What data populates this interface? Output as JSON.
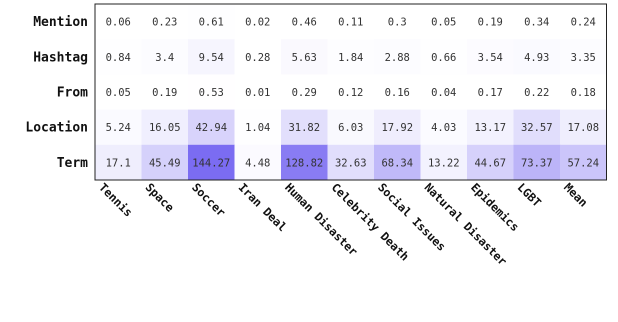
{
  "chart_data": {
    "type": "heatmap",
    "title": "",
    "xlabel": "",
    "ylabel": "",
    "rows": [
      "Mention",
      "Hashtag",
      "From",
      "Location",
      "Term"
    ],
    "columns": [
      "Tennis",
      "Space",
      "Soccer",
      "Iran Deal",
      "Human Disaster",
      "Celebrity Death",
      "Social Issues",
      "Natural Disaster",
      "Epidemics",
      "LGBT",
      "Mean"
    ],
    "values": [
      [
        0.06,
        0.23,
        0.61,
        0.02,
        0.46,
        0.11,
        0.3,
        0.05,
        0.19,
        0.34,
        0.24
      ],
      [
        0.84,
        3.4,
        9.54,
        0.28,
        5.63,
        1.84,
        2.88,
        0.66,
        3.54,
        4.93,
        3.35
      ],
      [
        0.05,
        0.19,
        0.53,
        0.01,
        0.29,
        0.12,
        0.16,
        0.04,
        0.17,
        0.22,
        0.18
      ],
      [
        5.24,
        16.05,
        42.94,
        1.04,
        31.82,
        6.03,
        17.92,
        4.03,
        13.17,
        32.57,
        17.08
      ],
      [
        17.1,
        45.49,
        144.27,
        4.48,
        128.82,
        32.63,
        68.34,
        13.22,
        44.67,
        73.37,
        57.24
      ]
    ],
    "value_labels": [
      [
        "0.06",
        "0.23",
        "0.61",
        "0.02",
        "0.46",
        "0.11",
        "0.3",
        "0.05",
        "0.19",
        "0.34",
        "0.24"
      ],
      [
        "0.84",
        "3.4",
        "9.54",
        "0.28",
        "5.63",
        "1.84",
        "2.88",
        "0.66",
        "3.54",
        "4.93",
        "3.35"
      ],
      [
        "0.05",
        "0.19",
        "0.53",
        "0.01",
        "0.29",
        "0.12",
        "0.16",
        "0.04",
        "0.17",
        "0.22",
        "0.18"
      ],
      [
        "5.24",
        "16.05",
        "42.94",
        "1.04",
        "31.82",
        "6.03",
        "17.92",
        "4.03",
        "13.17",
        "32.57",
        "17.08"
      ],
      [
        "17.1",
        "45.49",
        "144.27",
        "4.48",
        "128.82",
        "32.63",
        "68.34",
        "13.22",
        "44.67",
        "73.37",
        "57.24"
      ]
    ],
    "color_range": [
      0,
      144.27
    ],
    "colors": {
      "low": "#ffffff",
      "high": "#7b6cf2"
    },
    "grid": false,
    "legend": "none"
  }
}
